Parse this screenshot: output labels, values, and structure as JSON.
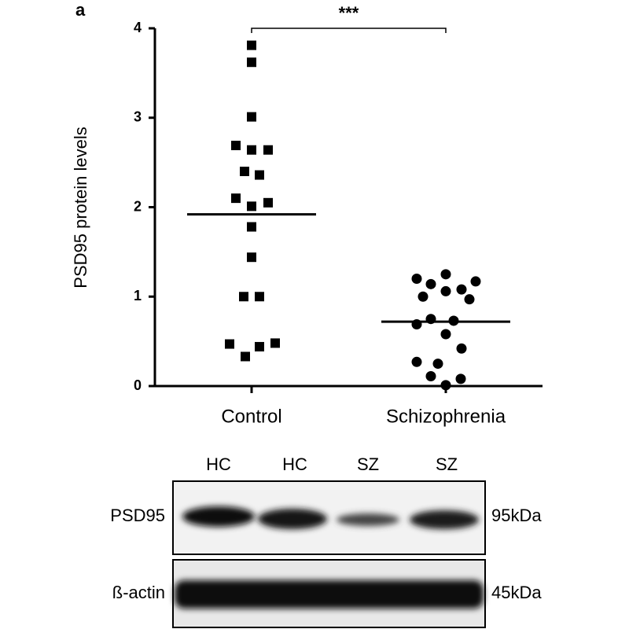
{
  "panel_label": "a",
  "chart_data": {
    "type": "dot",
    "y_label": "PSD95 protein levels",
    "categories": [
      "Control",
      "Schizophrenia"
    ],
    "markers": [
      "square",
      "circle"
    ],
    "color": "#000000",
    "points": [
      [
        3.81,
        3.62,
        3.01,
        2.69,
        2.64,
        2.64,
        2.4,
        2.36,
        2.1,
        2.01,
        2.05,
        1.78,
        1.44,
        1.0,
        1.0,
        0.47,
        0.44,
        0.48,
        0.33
      ],
      [
        1.25,
        1.2,
        1.14,
        1.17,
        1.0,
        1.06,
        1.08,
        0.97,
        0.75,
        0.73,
        0.69,
        0.58,
        0.42,
        0.27,
        0.25,
        0.11,
        0.08,
        0.01
      ]
    ],
    "means": [
      1.92,
      0.72
    ],
    "significance": "***",
    "ylim": [
      0,
      4
    ],
    "yticks": [
      0,
      1,
      2,
      3,
      4
    ]
  },
  "blot": {
    "lanes": [
      "HC",
      "HC",
      "SZ",
      "SZ"
    ],
    "rows": [
      {
        "label": "PSD95",
        "size": "95kDa"
      },
      {
        "label": "ß-actin",
        "size": "45kDa"
      }
    ]
  }
}
